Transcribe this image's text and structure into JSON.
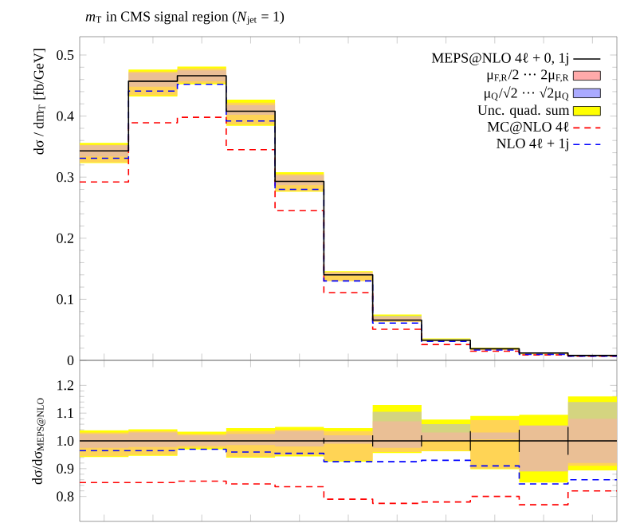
{
  "chart_data": [
    {
      "type": "step",
      "title": "*m*$_{T}$ in CMS signal region (*N*$_{jet}$ = 1)",
      "ylabel": "dσ / dm$_{T}$ [fb/GeV]",
      "categories": [
        null,
        null,
        null,
        null,
        null,
        null,
        null,
        null,
        null,
        null,
        null,
        null
      ],
      "ylim": [
        0,
        0.53
      ],
      "yticks": [
        0,
        0.1,
        0.2,
        0.3,
        0.4,
        0.5
      ],
      "tick_labels": "y",
      "legend": "top right",
      "series": [
        {
          "name": "MEPS@NLO 4ℓ + 0, 1j",
          "color": "#000000",
          "values": [
            0.343,
            0.457,
            0.466,
            0.408,
            0.293,
            0.14,
            0.066,
            0.033,
            0.019,
            0.012,
            0.008,
            0.008
          ]
        },
        {
          "name": "μ$_{F,R}$/2 ··· 2μ$_{F,R}$",
          "color": "#ffaaaa",
          "values": [
            null,
            null,
            null,
            null,
            null,
            null,
            null,
            null,
            null,
            null,
            null,
            null
          ],
          "lower": [
            0.324,
            0.434,
            0.454,
            0.386,
            0.277,
            0.13,
            0.063,
            0.032,
            0.017,
            0.011,
            0.007,
            0.007
          ],
          "upper": [
            0.353,
            0.473,
            0.478,
            0.422,
            0.305,
            0.145,
            0.071,
            0.034,
            0.02,
            0.013,
            0.009,
            0.009
          ]
        },
        {
          "name": "μ$_{Q}$/√2 ··· √2μ$_{Q}$",
          "color": "#aaaaff",
          "values": [
            null,
            null,
            null,
            null,
            null,
            null,
            null,
            null,
            null,
            null,
            null,
            null
          ],
          "lower": [
            0.334,
            0.448,
            0.457,
            0.402,
            0.287,
            0.139,
            0.064,
            0.033,
            0.019,
            0.011,
            0.007,
            0.007
          ],
          "upper": [
            0.352,
            0.471,
            0.475,
            0.418,
            0.303,
            0.143,
            0.073,
            0.035,
            0.02,
            0.013,
            0.009,
            0.009
          ]
        },
        {
          "name": "Unc. quad. sum",
          "color": "#ffff00",
          "values": [
            null,
            null,
            null,
            null,
            null,
            null,
            null,
            null,
            null,
            null,
            null,
            null
          ],
          "lower": [
            0.323,
            0.432,
            0.452,
            0.384,
            0.276,
            0.13,
            0.063,
            0.032,
            0.017,
            0.01,
            0.007,
            0.007
          ],
          "upper": [
            0.356,
            0.476,
            0.481,
            0.427,
            0.308,
            0.146,
            0.075,
            0.036,
            0.021,
            0.013,
            0.009,
            0.009
          ]
        },
        {
          "name": "MC@NLO 4ℓ",
          "color": "#ff0000",
          "line_style": "dashed",
          "values": [
            0.292,
            0.389,
            0.398,
            0.345,
            0.245,
            0.111,
            0.051,
            0.026,
            0.015,
            0.009,
            0.007,
            0.007
          ]
        },
        {
          "name": "NLO 4ℓ + 1j",
          "color": "#0000ff",
          "line_style": "dashed",
          "values": [
            0.331,
            0.441,
            0.452,
            0.392,
            0.28,
            0.13,
            0.061,
            0.031,
            0.017,
            0.01,
            0.007,
            0.007
          ]
        }
      ]
    },
    {
      "type": "step",
      "ylabel": "dσ/dσ$_{MEPS@NLO}$",
      "categories": [
        null,
        null,
        null,
        null,
        null,
        null,
        null,
        null,
        null,
        null,
        null,
        null
      ],
      "ylim": [
        0.71,
        1.29
      ],
      "yticks": [
        0.8,
        0.9,
        {
          "value": 1.0,
          "label": "1.0"
        },
        1.1,
        1.2
      ],
      "tick_labels": "y",
      "series": [
        {
          "color": "#000000",
          "values": [
            1,
            1,
            1,
            1,
            1,
            1,
            1,
            1,
            1,
            1,
            1,
            1
          ],
          "errors": [
            null,
            null,
            null,
            null,
            null,
            0.01,
            0.02,
            0.02,
            0.035,
            0.04,
            0.05,
            null
          ]
        },
        {
          "color": "#ffaaaa",
          "values": [
            null,
            null,
            null,
            null,
            null,
            null,
            null,
            null,
            null,
            null,
            null,
            null
          ],
          "lower": [
            0.945,
            0.95,
            0.975,
            0.943,
            0.948,
            0.93,
            0.96,
            0.965,
            0.9,
            0.89,
            0.91,
            0.91
          ],
          "upper": [
            1.03,
            1.035,
            1.025,
            1.035,
            1.04,
            1.035,
            1.07,
            1.03,
            1.075,
            1.055,
            1.08,
            1.08
          ]
        },
        {
          "color": "#aaaaff",
          "values": [
            null,
            null,
            null,
            null,
            null,
            null,
            null,
            null,
            null,
            null,
            null,
            null
          ],
          "lower": [
            0.975,
            0.978,
            0.982,
            0.985,
            0.98,
            0.99,
            0.975,
            1.0,
            1.005,
            0.89,
            0.92,
            0.92
          ],
          "upper": [
            1.025,
            1.03,
            1.02,
            1.025,
            1.035,
            1.02,
            1.105,
            1.06,
            1.03,
            1.055,
            1.14,
            1.14
          ]
        },
        {
          "color": "#ffff00",
          "values": [
            null,
            null,
            null,
            null,
            null,
            null,
            null,
            null,
            null,
            null,
            null,
            null
          ],
          "lower": [
            0.942,
            0.946,
            0.969,
            0.94,
            0.944,
            0.925,
            0.956,
            0.963,
            0.898,
            0.85,
            0.894,
            0.894
          ],
          "upper": [
            1.038,
            1.042,
            1.033,
            1.046,
            1.05,
            1.046,
            1.129,
            1.077,
            1.09,
            1.094,
            1.16,
            1.16
          ]
        },
        {
          "color": "#ff0000",
          "line_style": "dashed",
          "values": [
            0.85,
            0.85,
            0.855,
            0.845,
            0.835,
            0.79,
            0.775,
            0.78,
            0.8,
            0.77,
            0.82,
            0.82
          ]
        },
        {
          "color": "#0000ff",
          "line_style": "dashed",
          "values": [
            0.965,
            0.965,
            0.97,
            0.96,
            0.955,
            0.925,
            0.925,
            0.93,
            0.91,
            0.845,
            0.86,
            0.86
          ]
        }
      ]
    }
  ]
}
